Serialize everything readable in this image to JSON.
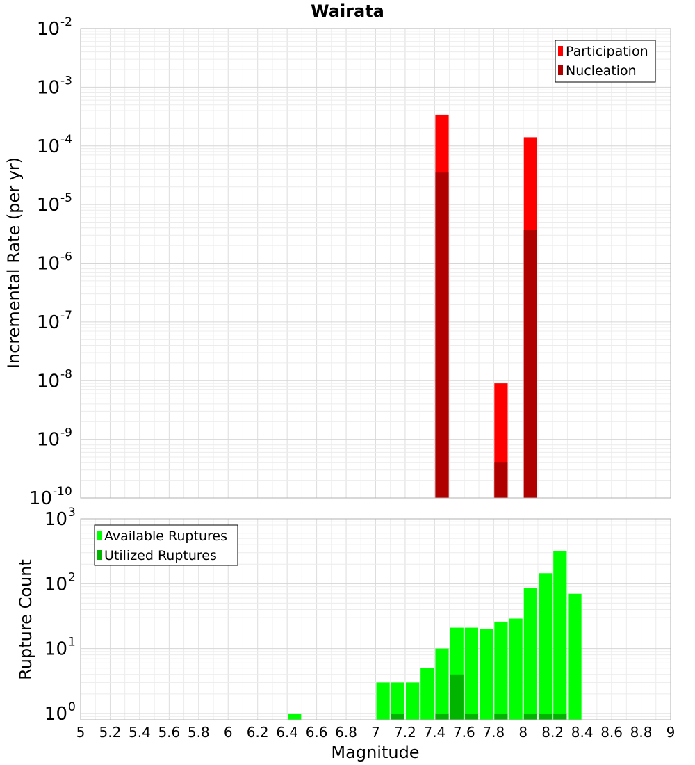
{
  "chart_data": [
    {
      "type": "bar",
      "title": "Wairata",
      "ylabel": "Incremental Rate (per yr)",
      "yscale": "log",
      "ylim": [
        1e-10,
        0.01
      ],
      "xlim": [
        5,
        9
      ],
      "y_tick_labels": [
        {
          "base": "10",
          "exp": "-2",
          "value": 0.01
        },
        {
          "base": "10",
          "exp": "-3",
          "value": 0.001
        },
        {
          "base": "10",
          "exp": "-4",
          "value": 0.0001
        },
        {
          "base": "10",
          "exp": "-5",
          "value": 1e-05
        },
        {
          "base": "10",
          "exp": "-6",
          "value": 1e-06
        },
        {
          "base": "10",
          "exp": "-7",
          "value": 1e-07
        },
        {
          "base": "10",
          "exp": "-8",
          "value": 1e-08
        },
        {
          "base": "10",
          "exp": "-9",
          "value": 1e-09
        },
        {
          "base": "10",
          "exp": "-10",
          "value": 1e-10
        }
      ],
      "grid": true,
      "legend_position": "top-right",
      "series": [
        {
          "name": "Participation",
          "color": "#ff0000",
          "x": [
            7.45,
            7.85,
            8.05
          ],
          "values": [
            0.00034,
            9e-09,
            0.00014
          ]
        },
        {
          "name": "Nucleation",
          "color": "#b00000",
          "x": [
            7.45,
            7.85,
            8.05
          ],
          "values": [
            3.5e-05,
            4e-10,
            3.7e-06
          ]
        }
      ]
    },
    {
      "type": "bar",
      "xlabel": "Magnitude",
      "ylabel": "Rupture Count",
      "yscale": "log",
      "ylim": [
        0.8,
        1000
      ],
      "xlim": [
        5,
        9
      ],
      "x_ticks": [
        "5",
        "5.2",
        "5.4",
        "5.6",
        "5.8",
        "6",
        "6.2",
        "6.4",
        "6.6",
        "6.8",
        "7",
        "7.2",
        "7.4",
        "7.6",
        "7.8",
        "8",
        "8.2",
        "8.4",
        "8.6",
        "8.8",
        "9"
      ],
      "y_tick_labels": [
        {
          "base": "10",
          "exp": "3",
          "value": 1000
        },
        {
          "base": "10",
          "exp": "2",
          "value": 100
        },
        {
          "base": "10",
          "exp": "1",
          "value": 10
        },
        {
          "base": "10",
          "exp": "0",
          "value": 1
        }
      ],
      "grid": true,
      "legend_position": "top-left",
      "series": [
        {
          "name": "Available Ruptures",
          "color": "#00ff00",
          "x": [
            6.45,
            7.05,
            7.15,
            7.25,
            7.35,
            7.45,
            7.55,
            7.65,
            7.75,
            7.85,
            7.95,
            8.05,
            8.15,
            8.25,
            8.35
          ],
          "values": [
            1,
            3,
            3,
            3,
            5,
            10,
            21,
            21,
            20,
            26,
            29,
            86,
            145,
            320,
            70
          ]
        },
        {
          "name": "Utilized Ruptures",
          "color": "#00b400",
          "x": [
            7.15,
            7.45,
            7.55,
            7.65,
            7.85,
            8.05,
            8.15,
            8.25
          ],
          "values": [
            1,
            1,
            4,
            1,
            1,
            1,
            1,
            1
          ]
        }
      ]
    }
  ]
}
